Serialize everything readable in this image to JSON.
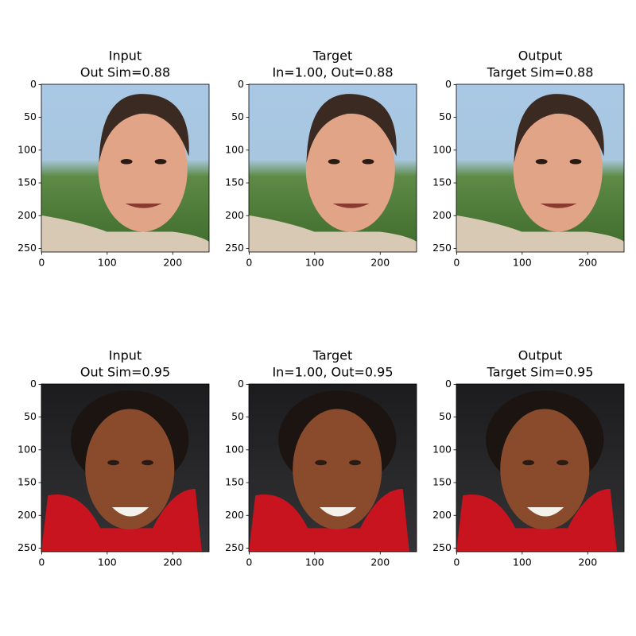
{
  "chart_data": [
    {
      "type": "image",
      "title": "Input",
      "subtitle": "Out Sim=0.88",
      "xlim": [
        -0.5,
        255.5
      ],
      "ylim": [
        255.5,
        -0.5
      ],
      "xticks": [
        0,
        100,
        200
      ],
      "yticks": [
        0,
        50,
        100,
        150,
        200,
        250
      ]
    },
    {
      "type": "image",
      "title": "Target",
      "subtitle": "In=1.00, Out=0.88",
      "xlim": [
        -0.5,
        255.5
      ],
      "ylim": [
        255.5,
        -0.5
      ],
      "xticks": [
        0,
        100,
        200
      ],
      "yticks": [
        0,
        50,
        100,
        150,
        200,
        250
      ]
    },
    {
      "type": "image",
      "title": "Output",
      "subtitle": "Target Sim=0.88",
      "xlim": [
        -0.5,
        255.5
      ],
      "ylim": [
        255.5,
        -0.5
      ],
      "xticks": [
        0,
        100,
        200
      ],
      "yticks": [
        0,
        50,
        100,
        150,
        200,
        250
      ]
    },
    {
      "type": "image",
      "title": "Input",
      "subtitle": "Out Sim=0.95",
      "xlim": [
        -0.5,
        255.5
      ],
      "ylim": [
        255.5,
        -0.5
      ],
      "xticks": [
        0,
        100,
        200
      ],
      "yticks": [
        0,
        50,
        100,
        150,
        200,
        250
      ]
    },
    {
      "type": "image",
      "title": "Target",
      "subtitle": "In=1.00, Out=0.95",
      "xlim": [
        -0.5,
        255.5
      ],
      "ylim": [
        255.5,
        -0.5
      ],
      "xticks": [
        0,
        100,
        200
      ],
      "yticks": [
        0,
        50,
        100,
        150,
        200,
        250
      ]
    },
    {
      "type": "image",
      "title": "Output",
      "subtitle": "Target Sim=0.95",
      "xlim": [
        -0.5,
        255.5
      ],
      "ylim": [
        255.5,
        -0.5
      ],
      "xticks": [
        0,
        100,
        200
      ],
      "yticks": [
        0,
        50,
        100,
        150,
        200,
        250
      ]
    }
  ]
}
